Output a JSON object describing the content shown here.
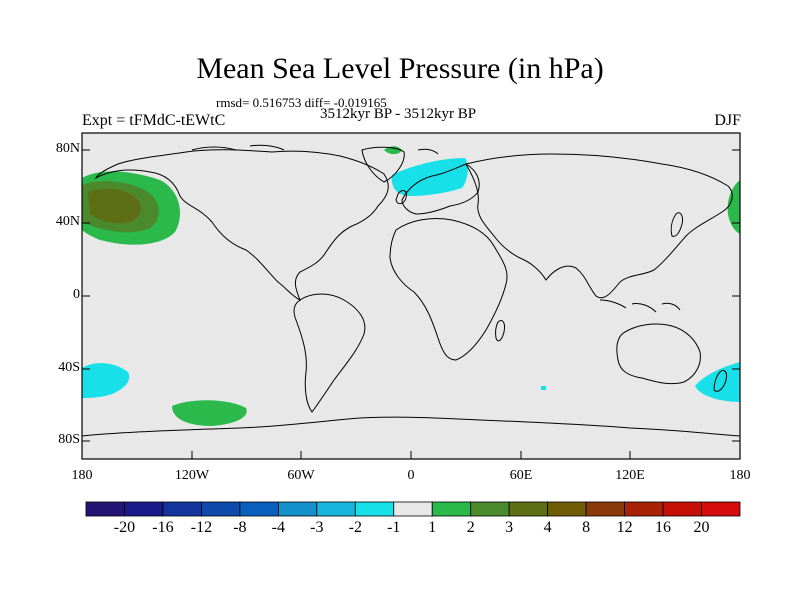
{
  "title": "Mean Sea Level Pressure (in hPa)",
  "stats": "rmsd= 0.516753  diff= -0.019165",
  "left_label": "Expt = tFMdC-tEWtC",
  "center_label": "3512kyr BP - 3512kyr BP",
  "right_label": "DJF",
  "lat_ticks": [
    "80N",
    "40N",
    "0",
    "40S",
    "80S"
  ],
  "lon_ticks": [
    "180",
    "120W",
    "60W",
    "0",
    "60E",
    "120E",
    "180"
  ],
  "colorbar": {
    "labels": [
      "-20",
      "-16",
      "-12",
      "-8",
      "-4",
      "-3",
      "-2",
      "-1",
      "1",
      "2",
      "3",
      "4",
      "8",
      "12",
      "16",
      "20"
    ],
    "colors": [
      "#241574",
      "#1a1a8a",
      "#12349c",
      "#0e4aac",
      "#0b5fbc",
      "#1490cc",
      "#17b6dc",
      "#17e0e8",
      "#e8e8e8",
      "#2ab94a",
      "#4b8a2c",
      "#5d6e14",
      "#6f5c04",
      "#8a3a08",
      "#a82205",
      "#c41006",
      "#d60c0c"
    ]
  },
  "map": {
    "background_color": "#e8e8e8",
    "anomalies": [
      {
        "name": "north-pacific-positive",
        "lon": -155,
        "lat": 43,
        "class": "2 to 4 hPa"
      },
      {
        "name": "north-atlantic-negative",
        "lon": 15,
        "lat": 63,
        "class": "-1 to -2 hPa"
      },
      {
        "name": "arctic-positive",
        "lon": -10,
        "lat": 80,
        "class": "1 to 2 hPa"
      },
      {
        "name": "south-pacific-positive",
        "lon": -100,
        "lat": -63,
        "class": "1 to 2 hPa"
      },
      {
        "name": "south-pacific-negative-west",
        "lon": -175,
        "lat": -46,
        "class": "-1 to -2 hPa"
      },
      {
        "name": "south-pacific-negative-east",
        "lon": 172,
        "lat": -50,
        "class": "-1 to -2 hPa"
      },
      {
        "name": "west-pacific-positive",
        "lon": 175,
        "lat": 48,
        "class": "1 to 2 hPa"
      }
    ]
  }
}
